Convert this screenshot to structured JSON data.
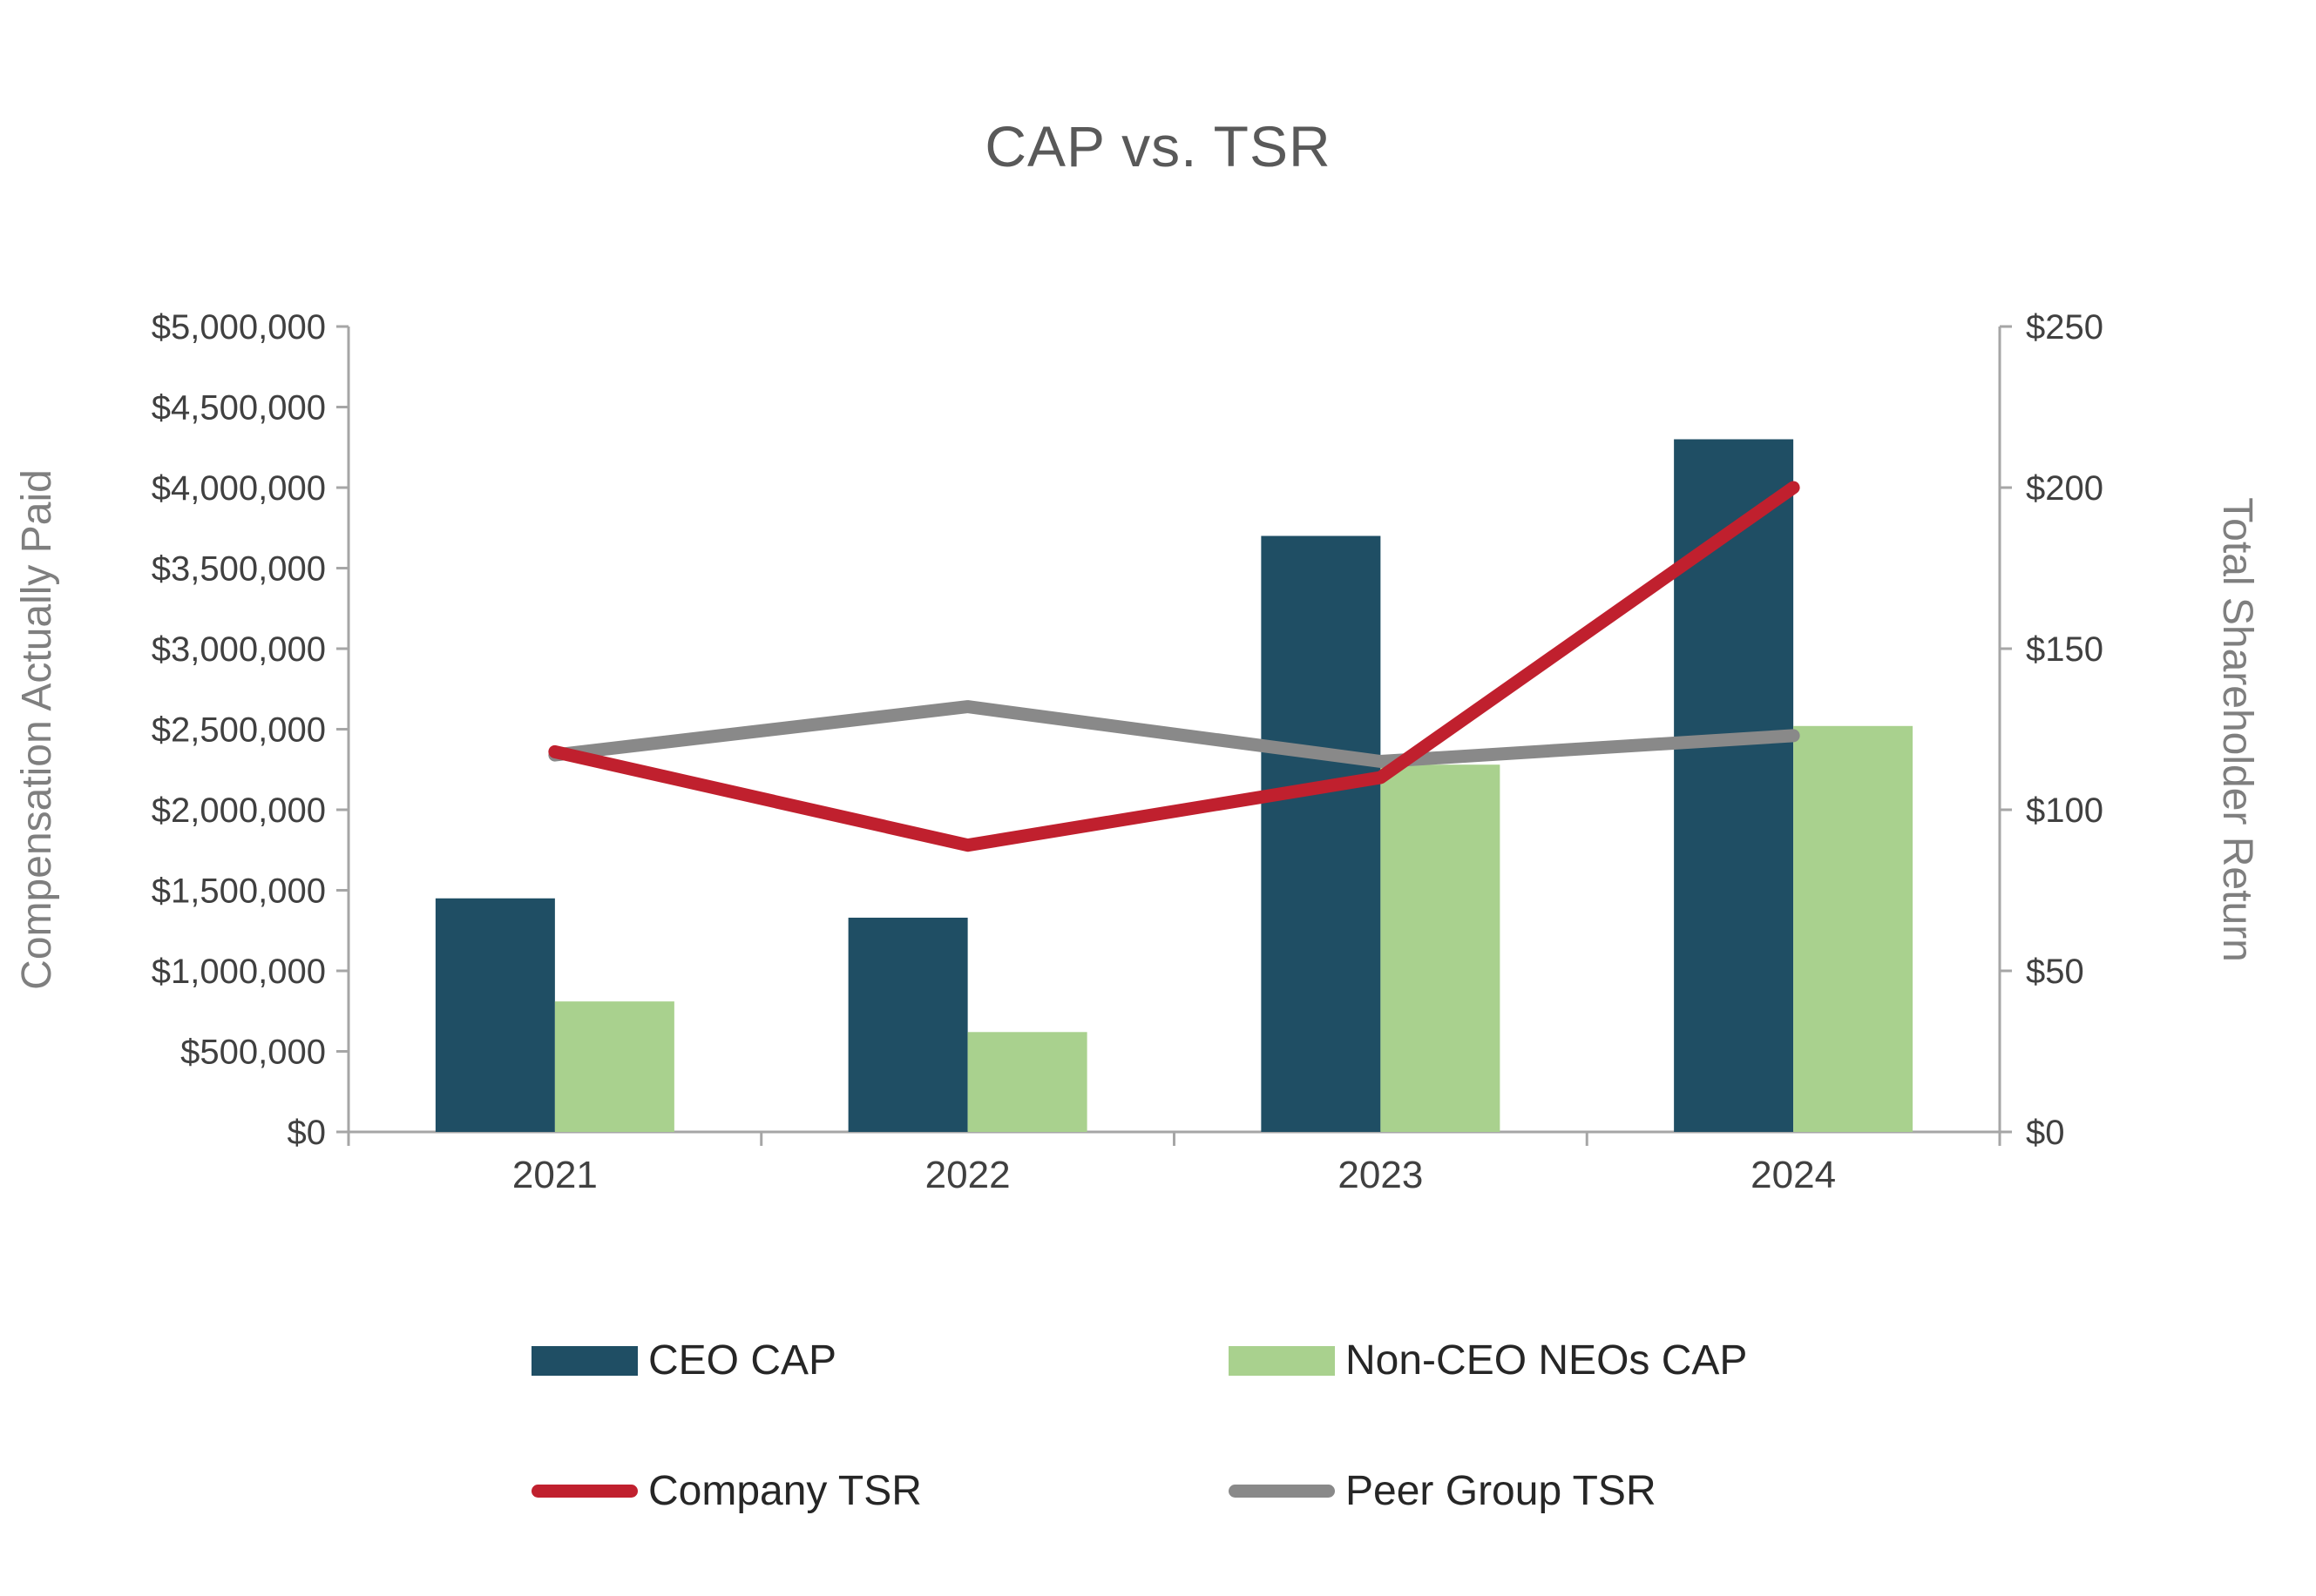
{
  "chart_data": {
    "type": "combo-bar-line",
    "title": "CAP vs. TSR",
    "categories": [
      "2021",
      "2022",
      "2023",
      "2024"
    ],
    "bar_series": [
      {
        "name": "CEO CAP",
        "color": "#1F4E64",
        "axis": "left",
        "values": [
          1450000,
          1330000,
          3700000,
          4300000
        ]
      },
      {
        "name": "Non-CEO NEOs CAP",
        "color": "#A9D18E",
        "axis": "left",
        "values": [
          810000,
          620000,
          2280000,
          2520000
        ]
      }
    ],
    "line_series": [
      {
        "name": "Company TSR",
        "color": "#C0202E",
        "axis": "right",
        "values": [
          118,
          89,
          110,
          200
        ]
      },
      {
        "name": "Peer Group TSR",
        "color": "#898989",
        "axis": "right",
        "values": [
          117,
          132,
          115,
          123
        ]
      }
    ],
    "left_axis": {
      "label": "Compensation Actually Paid",
      "min": 0,
      "max": 5000000,
      "step": 500000,
      "tick_values": [
        0,
        500000,
        1000000,
        1500000,
        2000000,
        2500000,
        3000000,
        3500000,
        4000000,
        4500000,
        5000000
      ],
      "tick_labels": [
        "$0",
        "$500,000",
        "$1,000,000",
        "$1,500,000",
        "$2,000,000",
        "$2,500,000",
        "$3,000,000",
        "$3,500,000",
        "$4,000,000",
        "$4,500,000",
        "$5,000,000"
      ]
    },
    "right_axis": {
      "label": "Total Shareholder Return",
      "min": 0,
      "max": 250,
      "step": 50,
      "tick_values": [
        0,
        50,
        100,
        150,
        200,
        250
      ],
      "tick_labels": [
        "$0",
        "$50",
        "$100",
        "$150",
        "$200",
        "$250"
      ]
    },
    "x_axis": {
      "labels": [
        "2021",
        "2022",
        "2023",
        "2024"
      ]
    },
    "legend": {
      "position": "bottom",
      "items": [
        "CEO CAP",
        "Non-CEO NEOs CAP",
        "Company TSR",
        "Peer Group TSR"
      ]
    },
    "grid": false
  }
}
